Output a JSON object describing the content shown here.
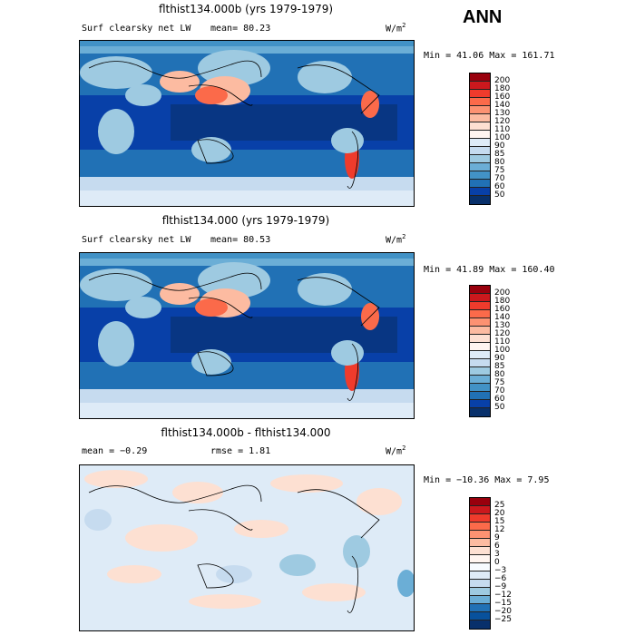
{
  "season": "ANN",
  "panels": [
    {
      "title": "flthist134.000b (yrs 1979-1979)",
      "variable": "Surf clearsky net LW",
      "stat1": "mean=  80.23",
      "stat2": "",
      "units": "W/m",
      "units_exp": "2",
      "minmax": "Min =  41.06 Max = 161.71",
      "colorbar_labels": [
        "200",
        "180",
        "160",
        "140",
        "130",
        "120",
        "110",
        "100",
        "90",
        "85",
        "80",
        "75",
        "70",
        "60",
        "50"
      ],
      "colorbar_colors": [
        "#99000d",
        "#cb181d",
        "#ef3b2c",
        "#fb6a4a",
        "#fc9272",
        "#fcbba1",
        "#fde0d2",
        "#fff5f0",
        "#deebf7",
        "#c6dbef",
        "#9ecae1",
        "#6baed6",
        "#4292c6",
        "#2171b5",
        "#0840a8",
        "#08306b"
      ]
    },
    {
      "title": "flthist134.000 (yrs 1979-1979)",
      "variable": "Surf clearsky net LW",
      "stat1": "mean=  80.53",
      "stat2": "",
      "units": "W/m",
      "units_exp": "2",
      "minmax": "Min =  41.89 Max = 160.40",
      "colorbar_labels": [
        "200",
        "180",
        "160",
        "140",
        "130",
        "120",
        "110",
        "100",
        "90",
        "85",
        "80",
        "75",
        "70",
        "60",
        "50"
      ],
      "colorbar_colors": [
        "#99000d",
        "#cb181d",
        "#ef3b2c",
        "#fb6a4a",
        "#fc9272",
        "#fcbba1",
        "#fde0d2",
        "#fff5f0",
        "#deebf7",
        "#c6dbef",
        "#9ecae1",
        "#6baed6",
        "#4292c6",
        "#2171b5",
        "#0840a8",
        "#08306b"
      ]
    },
    {
      "title": "flthist134.000b - flthist134.000",
      "variable": "",
      "stat1": "mean =  −0.29",
      "stat2": "rmse =   1.81",
      "units": "W/m",
      "units_exp": "2",
      "minmax": "Min = −10.36 Max =   7.95",
      "colorbar_labels": [
        "25",
        "20",
        "15",
        "12",
        "9",
        "6",
        "3",
        "0",
        "−3",
        "−6",
        "−9",
        "−12",
        "−15",
        "−20",
        "−25"
      ],
      "colorbar_colors": [
        "#99000d",
        "#cb181d",
        "#ef3b2c",
        "#fb6a4a",
        "#fc9272",
        "#fcbba1",
        "#fde0d2",
        "#fff5f0",
        "#f7fbff",
        "#deebf7",
        "#c6dbef",
        "#9ecae1",
        "#6baed6",
        "#2171b5",
        "#08519c",
        "#08306b"
      ]
    }
  ]
}
